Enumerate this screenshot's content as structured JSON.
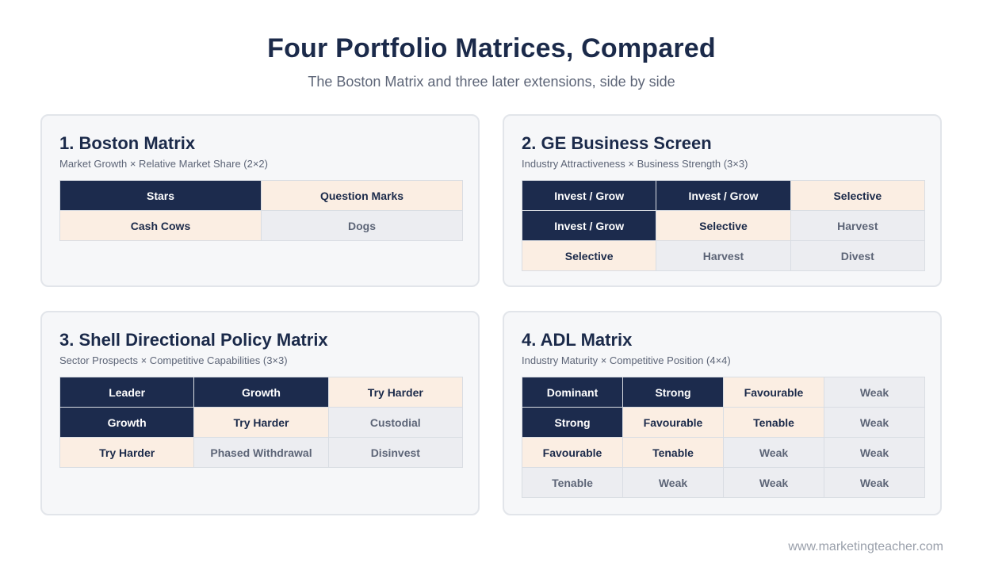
{
  "header": {
    "title": "Four Portfolio Matrices, Compared",
    "subtitle": "The Boston Matrix and three later extensions, side by side"
  },
  "matrices": [
    {
      "title": "1. Boston Matrix",
      "subtitle": "Market Growth × Relative Market Share (2×2)",
      "columns": 2,
      "rows": [
        [
          {
            "label": "Stars",
            "tone": "strong"
          },
          {
            "label": "Question Marks",
            "tone": "mid"
          }
        ],
        [
          {
            "label": "Cash Cows",
            "tone": "mid"
          },
          {
            "label": "Dogs",
            "tone": "weak"
          }
        ]
      ]
    },
    {
      "title": "2. GE Business Screen",
      "subtitle": "Industry Attractiveness × Business Strength (3×3)",
      "columns": 3,
      "rows": [
        [
          {
            "label": "Invest / Grow",
            "tone": "strong"
          },
          {
            "label": "Invest / Grow",
            "tone": "strong"
          },
          {
            "label": "Selective",
            "tone": "mid"
          }
        ],
        [
          {
            "label": "Invest / Grow",
            "tone": "strong"
          },
          {
            "label": "Selective",
            "tone": "mid"
          },
          {
            "label": "Harvest",
            "tone": "weak"
          }
        ],
        [
          {
            "label": "Selective",
            "tone": "mid"
          },
          {
            "label": "Harvest",
            "tone": "weak"
          },
          {
            "label": "Divest",
            "tone": "weak"
          }
        ]
      ]
    },
    {
      "title": "3. Shell Directional Policy Matrix",
      "subtitle": "Sector Prospects × Competitive Capabilities (3×3)",
      "columns": 3,
      "rows": [
        [
          {
            "label": "Leader",
            "tone": "strong"
          },
          {
            "label": "Growth",
            "tone": "strong"
          },
          {
            "label": "Try Harder",
            "tone": "mid"
          }
        ],
        [
          {
            "label": "Growth",
            "tone": "strong"
          },
          {
            "label": "Try Harder",
            "tone": "mid"
          },
          {
            "label": "Custodial",
            "tone": "weak"
          }
        ],
        [
          {
            "label": "Try Harder",
            "tone": "mid"
          },
          {
            "label": "Phased Withdrawal",
            "tone": "weak"
          },
          {
            "label": "Disinvest",
            "tone": "weak"
          }
        ]
      ]
    },
    {
      "title": "4. ADL Matrix",
      "subtitle": "Industry Maturity × Competitive Position (4×4)",
      "columns": 4,
      "rows": [
        [
          {
            "label": "Dominant",
            "tone": "strong"
          },
          {
            "label": "Strong",
            "tone": "strong"
          },
          {
            "label": "Favourable",
            "tone": "mid"
          },
          {
            "label": "Weak",
            "tone": "weak"
          }
        ],
        [
          {
            "label": "Strong",
            "tone": "strong"
          },
          {
            "label": "Favourable",
            "tone": "mid"
          },
          {
            "label": "Tenable",
            "tone": "mid"
          },
          {
            "label": "Weak",
            "tone": "weak"
          }
        ],
        [
          {
            "label": "Favourable",
            "tone": "mid"
          },
          {
            "label": "Tenable",
            "tone": "mid"
          },
          {
            "label": "Weak",
            "tone": "weak"
          },
          {
            "label": "Weak",
            "tone": "weak"
          }
        ],
        [
          {
            "label": "Tenable",
            "tone": "weak"
          },
          {
            "label": "Weak",
            "tone": "weak"
          },
          {
            "label": "Weak",
            "tone": "weak"
          },
          {
            "label": "Weak",
            "tone": "weak"
          }
        ]
      ]
    }
  ],
  "colors": {
    "strong": "#1c2b4d",
    "mid": "#fbeee3",
    "weak": "#ecedf1"
  },
  "footer": {
    "url": "www.marketingteacher.com"
  }
}
